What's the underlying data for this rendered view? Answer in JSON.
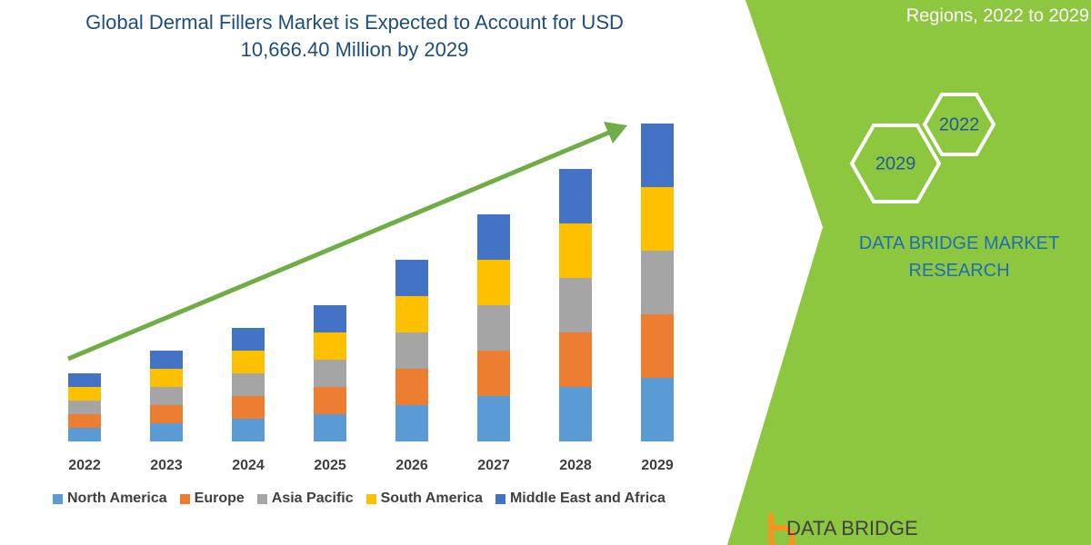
{
  "chart_data": {
    "type": "stacked-bar",
    "title": "Global Dermal Fillers Market is Expected to Account for USD 10,666.40 Million by 2029",
    "categories": [
      "2022",
      "2023",
      "2024",
      "2025",
      "2026",
      "2027",
      "2028",
      "2029"
    ],
    "series": [
      {
        "name": "North America",
        "color": "#5b9bd5",
        "values": [
          15,
          20,
          25,
          30,
          40,
          50,
          60,
          70
        ]
      },
      {
        "name": "Europe",
        "color": "#ed7d31",
        "values": [
          15,
          20,
          25,
          30,
          40,
          50,
          60,
          70
        ]
      },
      {
        "name": "Asia Pacific",
        "color": "#a5a5a5",
        "values": [
          15,
          20,
          25,
          30,
          40,
          50,
          60,
          70
        ]
      },
      {
        "name": "South America",
        "color": "#ffc000",
        "values": [
          15,
          20,
          25,
          30,
          40,
          50,
          60,
          70
        ]
      },
      {
        "name": "Middle East and Africa",
        "color": "#4472c4",
        "values": [
          15,
          20,
          25,
          30,
          40,
          50,
          60,
          70
        ]
      }
    ]
  },
  "side": {
    "header": "Regions, 2022 to 2029",
    "hex_labels": [
      "2022",
      "2029"
    ],
    "brand": "DATA BRIDGE MARKET RESEARCH",
    "logo": "DATA BRIDGE"
  }
}
